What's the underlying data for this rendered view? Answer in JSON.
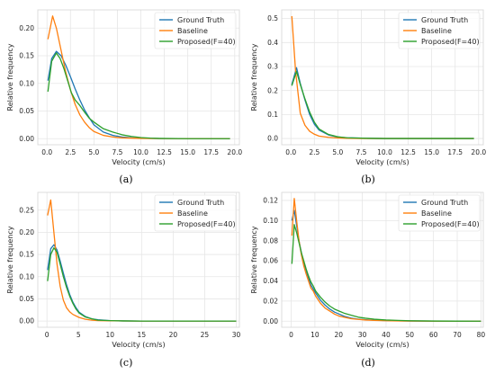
{
  "colors": {
    "ground_truth": "#1f77b4",
    "baseline": "#ff7f0e",
    "proposed": "#2ca02c",
    "grid": "#e6e6e6",
    "spine": "#d9d9d9"
  },
  "chart_data": [
    {
      "id": "a",
      "caption": "(a)",
      "type": "line",
      "xlabel": "Velocity (cm/s)",
      "ylabel": "Relative frequency",
      "xlim": [
        -0.98,
        20.5
      ],
      "ylim": [
        -0.011,
        0.233
      ],
      "xticks": [
        0.0,
        2.5,
        5.0,
        7.5,
        10.0,
        12.5,
        15.0,
        17.5,
        20.0
      ],
      "xtick_labels": [
        "0.0",
        "2.5",
        "5.0",
        "7.5",
        "10.0",
        "12.5",
        "15.0",
        "17.5",
        "20.0"
      ],
      "yticks": [
        0.0,
        0.05,
        0.1,
        0.15,
        0.2
      ],
      "ytick_labels": [
        "0.00",
        "0.05",
        "0.10",
        "0.15",
        "0.20"
      ],
      "grid": true,
      "legend_position": "top-right",
      "series": [
        {
          "name": "Ground Truth",
          "color_key": "ground_truth",
          "x": [
            0.1,
            0.5,
            1.0,
            1.5,
            2.0,
            2.5,
            3.0,
            3.5,
            4.0,
            4.5,
            5.0,
            6.0,
            7.0,
            8.0,
            9.0,
            10.0,
            12.0,
            15.0,
            19.5
          ],
          "y": [
            0.105,
            0.145,
            0.158,
            0.15,
            0.133,
            0.112,
            0.09,
            0.07,
            0.052,
            0.038,
            0.025,
            0.012,
            0.006,
            0.003,
            0.0015,
            0.0008,
            0.0002,
            0.0,
            0.0
          ]
        },
        {
          "name": "Baseline",
          "color_key": "baseline",
          "x": [
            0.1,
            0.6,
            1.0,
            1.5,
            2.0,
            2.5,
            3.0,
            3.5,
            4.0,
            4.5,
            5.0,
            6.0,
            7.0,
            8.0,
            10.0,
            12.0,
            15.0,
            19.5
          ],
          "y": [
            0.18,
            0.222,
            0.2,
            0.16,
            0.12,
            0.088,
            0.062,
            0.043,
            0.03,
            0.02,
            0.013,
            0.006,
            0.003,
            0.0015,
            0.0005,
            0.0002,
            0.0,
            0.0
          ]
        },
        {
          "name": "Proposed(F=40)",
          "color_key": "proposed",
          "x": [
            0.1,
            0.5,
            1.0,
            1.4,
            1.8,
            2.2,
            2.6,
            3.0,
            3.5,
            4.0,
            4.5,
            5.0,
            6.0,
            7.0,
            8.0,
            9.0,
            10.0,
            11.0,
            12.0,
            15.0,
            19.5
          ],
          "y": [
            0.085,
            0.14,
            0.155,
            0.145,
            0.127,
            0.105,
            0.083,
            0.07,
            0.06,
            0.048,
            0.037,
            0.03,
            0.018,
            0.012,
            0.007,
            0.004,
            0.002,
            0.001,
            0.0005,
            0.0,
            0.0
          ]
        }
      ]
    },
    {
      "id": "b",
      "caption": "(b)",
      "type": "line",
      "xlabel": "Velocity (cm/s)",
      "ylabel": "Relative frequency",
      "xlim": [
        -0.98,
        20.5
      ],
      "ylim": [
        -0.026,
        0.536
      ],
      "xticks": [
        0.0,
        2.5,
        5.0,
        7.5,
        10.0,
        12.5,
        15.0,
        17.5,
        20.0
      ],
      "xtick_labels": [
        "0.0",
        "2.5",
        "5.0",
        "7.5",
        "10.0",
        "12.5",
        "15.0",
        "17.5",
        "20.0"
      ],
      "yticks": [
        0.0,
        0.1,
        0.2,
        0.3,
        0.4,
        0.5
      ],
      "ytick_labels": [
        "0.0",
        "0.1",
        "0.2",
        "0.3",
        "0.4",
        "0.5"
      ],
      "grid": true,
      "legend_position": "top-right",
      "series": [
        {
          "name": "Ground Truth",
          "color_key": "ground_truth",
          "x": [
            0.1,
            0.6,
            1.0,
            1.5,
            2.0,
            2.5,
            3.0,
            4.0,
            5.0,
            6.0,
            8.0,
            10.0,
            19.5
          ],
          "y": [
            0.225,
            0.295,
            0.23,
            0.16,
            0.1,
            0.06,
            0.035,
            0.015,
            0.006,
            0.003,
            0.001,
            0.0,
            0.0
          ]
        },
        {
          "name": "Baseline",
          "color_key": "baseline",
          "x": [
            0.1,
            0.5,
            1.0,
            1.5,
            2.0,
            2.5,
            3.0,
            4.0,
            5.0,
            6.0,
            8.0,
            10.0,
            19.5
          ],
          "y": [
            0.51,
            0.28,
            0.105,
            0.055,
            0.03,
            0.018,
            0.01,
            0.005,
            0.002,
            0.001,
            0.0,
            0.0,
            0.0
          ]
        },
        {
          "name": "Proposed(F=40)",
          "color_key": "proposed",
          "x": [
            0.1,
            0.6,
            1.0,
            1.5,
            2.0,
            2.5,
            3.0,
            4.0,
            5.0,
            6.0,
            8.0,
            10.0,
            19.5
          ],
          "y": [
            0.22,
            0.28,
            0.225,
            0.165,
            0.11,
            0.068,
            0.04,
            0.017,
            0.007,
            0.003,
            0.001,
            0.0,
            0.0
          ]
        }
      ]
    },
    {
      "id": "c",
      "caption": "(c)",
      "type": "line",
      "xlabel": "Velocity (cm/s)",
      "ylabel": "Relative frequency",
      "xlim": [
        -1.45,
        30.5
      ],
      "ylim": [
        -0.014,
        0.29
      ],
      "xticks": [
        0,
        5,
        10,
        15,
        20,
        25,
        30
      ],
      "xtick_labels": [
        "0",
        "5",
        "10",
        "15",
        "20",
        "25",
        "30"
      ],
      "yticks": [
        0.0,
        0.05,
        0.1,
        0.15,
        0.2,
        0.25
      ],
      "ytick_labels": [
        "0.00",
        "0.05",
        "0.10",
        "0.15",
        "0.20",
        "0.25"
      ],
      "grid": true,
      "legend_position": "top-right",
      "series": [
        {
          "name": "Ground Truth",
          "color_key": "ground_truth",
          "x": [
            0.1,
            0.6,
            1.1,
            1.6,
            2.1,
            2.6,
            3.1,
            3.6,
            4.1,
            4.6,
            5.1,
            6.1,
            7.1,
            8.1,
            10.0,
            12.0,
            15.0,
            30.0
          ],
          "y": [
            0.115,
            0.163,
            0.172,
            0.16,
            0.135,
            0.108,
            0.082,
            0.06,
            0.043,
            0.03,
            0.02,
            0.01,
            0.005,
            0.003,
            0.001,
            0.0003,
            0.0,
            0.0
          ]
        },
        {
          "name": "Baseline",
          "color_key": "baseline",
          "x": [
            0.1,
            0.6,
            1.1,
            1.6,
            2.1,
            2.6,
            3.1,
            3.6,
            4.1,
            5.1,
            6.1,
            7.1,
            8.1,
            10.0,
            12.0,
            15.0,
            30.0
          ],
          "y": [
            0.238,
            0.273,
            0.2,
            0.128,
            0.078,
            0.047,
            0.03,
            0.021,
            0.015,
            0.008,
            0.004,
            0.002,
            0.001,
            0.0005,
            0.0002,
            0.0,
            0.0
          ]
        },
        {
          "name": "Proposed(F=40)",
          "color_key": "proposed",
          "x": [
            0.1,
            0.6,
            1.1,
            1.6,
            2.1,
            2.6,
            3.1,
            3.6,
            4.1,
            4.6,
            5.1,
            6.1,
            7.1,
            8.1,
            10.0,
            12.0,
            15.0,
            30.0
          ],
          "y": [
            0.09,
            0.15,
            0.165,
            0.155,
            0.128,
            0.1,
            0.076,
            0.056,
            0.04,
            0.027,
            0.018,
            0.009,
            0.005,
            0.002,
            0.001,
            0.0003,
            0.0,
            0.0
          ]
        }
      ]
    },
    {
      "id": "d",
      "caption": "(d)",
      "type": "line",
      "xlabel": "Velocity (cm/s)",
      "ylabel": "Relative frequency",
      "xlim": [
        -4.0,
        81.0
      ],
      "ylim": [
        -0.006,
        0.128
      ],
      "xticks": [
        0,
        10,
        20,
        30,
        40,
        50,
        60,
        70,
        80
      ],
      "xtick_labels": [
        "0",
        "10",
        "20",
        "30",
        "40",
        "50",
        "60",
        "70",
        "80"
      ],
      "yticks": [
        0.0,
        0.02,
        0.04,
        0.06,
        0.08,
        0.1,
        0.12
      ],
      "ytick_labels": [
        "0.00",
        "0.02",
        "0.04",
        "0.06",
        "0.08",
        "0.10",
        "0.12"
      ],
      "grid": true,
      "legend_position": "top-right",
      "series": [
        {
          "name": "Ground Truth",
          "color_key": "ground_truth",
          "x": [
            0.3,
            1.3,
            2.3,
            3.3,
            4.3,
            5.3,
            6.3,
            7.3,
            8.3,
            9.3,
            10.3,
            12.3,
            14.3,
            16.3,
            18.3,
            20.3,
            22.3,
            25.3,
            28.3,
            31.3,
            35.0,
            40.0,
            45.0,
            50.0,
            60.0,
            70.0,
            80.0
          ],
          "y": [
            0.1,
            0.11,
            0.095,
            0.08,
            0.068,
            0.058,
            0.05,
            0.043,
            0.036,
            0.032,
            0.028,
            0.021,
            0.016,
            0.012,
            0.009,
            0.007,
            0.005,
            0.003,
            0.002,
            0.0015,
            0.001,
            0.0006,
            0.0004,
            0.0002,
            0.0001,
            0.0,
            0.0
          ]
        },
        {
          "name": "Baseline",
          "color_key": "baseline",
          "x": [
            0.3,
            1.3,
            2.3,
            3.3,
            4.3,
            5.3,
            6.3,
            7.3,
            8.3,
            9.3,
            10.3,
            12.3,
            14.3,
            16.3,
            18.3,
            20.3,
            22.3,
            25.3,
            28.3,
            31.3,
            35.0,
            40.0,
            45.0,
            50.0,
            60.0,
            70.0,
            80.0
          ],
          "y": [
            0.085,
            0.122,
            0.1,
            0.08,
            0.066,
            0.055,
            0.047,
            0.04,
            0.033,
            0.03,
            0.025,
            0.018,
            0.013,
            0.01,
            0.007,
            0.005,
            0.004,
            0.0025,
            0.0018,
            0.0012,
            0.0008,
            0.0005,
            0.0003,
            0.0002,
            0.0001,
            0.0,
            0.0
          ]
        },
        {
          "name": "Proposed(F=40)",
          "color_key": "proposed",
          "x": [
            0.3,
            1.3,
            2.3,
            3.3,
            4.3,
            5.3,
            6.3,
            7.3,
            8.3,
            9.3,
            10.3,
            12.3,
            14.3,
            16.3,
            18.3,
            20.3,
            22.3,
            25.3,
            28.3,
            31.3,
            35.0,
            40.0,
            45.0,
            50.0,
            60.0,
            70.0,
            80.0
          ],
          "y": [
            0.057,
            0.096,
            0.088,
            0.078,
            0.068,
            0.06,
            0.052,
            0.045,
            0.039,
            0.035,
            0.03,
            0.024,
            0.019,
            0.015,
            0.012,
            0.01,
            0.008,
            0.006,
            0.004,
            0.003,
            0.002,
            0.0012,
            0.0008,
            0.0005,
            0.0002,
            0.0001,
            0.0
          ]
        }
      ]
    }
  ]
}
